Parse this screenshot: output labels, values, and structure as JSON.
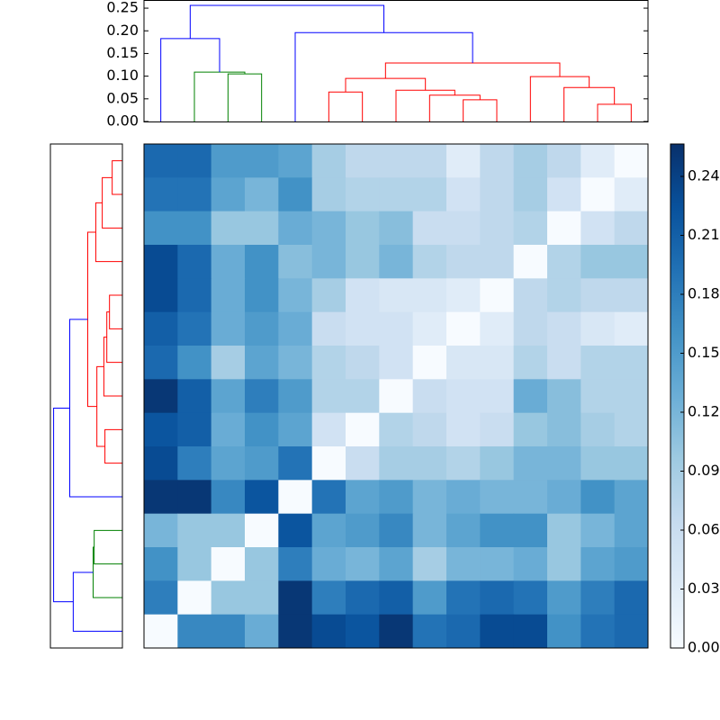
{
  "chart_data": {
    "type": "clustermap",
    "dendrogram": {
      "ylim": [
        0,
        0.268
      ],
      "yticks": [
        {
          "value": 0,
          "label": "0.00"
        },
        {
          "value": 0.05,
          "label": "0.05"
        },
        {
          "value": 0.1,
          "label": "0.10"
        },
        {
          "value": 0.15,
          "label": "0.15"
        },
        {
          "value": 0.2,
          "label": "0.20"
        },
        {
          "value": 0.25,
          "label": "0.25"
        }
      ],
      "links": [
        {
          "x": [
            2,
            3
          ],
          "h": [
            0,
            0,
            0.105
          ],
          "color": "#008000"
        },
        {
          "x": [
            1,
            2.5
          ],
          "h": [
            0,
            0.105,
            0.109
          ],
          "color": "#008000"
        },
        {
          "x": [
            0,
            1.75
          ],
          "h": [
            0,
            0.109,
            0.183
          ],
          "color": "#0000ff"
        },
        {
          "x": [
            5,
            6
          ],
          "h": [
            0,
            0,
            0.065
          ],
          "color": "#ff0000"
        },
        {
          "x": [
            9,
            10
          ],
          "h": [
            0,
            0,
            0.048
          ],
          "color": "#ff0000"
        },
        {
          "x": [
            8,
            9.5
          ],
          "h": [
            0,
            0.048,
            0.058
          ],
          "color": "#ff0000"
        },
        {
          "x": [
            7,
            8.75
          ],
          "h": [
            0,
            0.058,
            0.069
          ],
          "color": "#ff0000"
        },
        {
          "x": [
            5.5,
            7.875
          ],
          "h": [
            0.065,
            0.069,
            0.095
          ],
          "color": "#ff0000"
        },
        {
          "x": [
            13,
            14
          ],
          "h": [
            0,
            0,
            0.038
          ],
          "color": "#ff0000"
        },
        {
          "x": [
            12,
            13.5
          ],
          "h": [
            0,
            0.038,
            0.075
          ],
          "color": "#ff0000"
        },
        {
          "x": [
            11,
            12.75
          ],
          "h": [
            0,
            0.075,
            0.099
          ],
          "color": "#ff0000"
        },
        {
          "x": [
            6.6875,
            11.875
          ],
          "h": [
            0.095,
            0.099,
            0.129
          ],
          "color": "#ff0000"
        },
        {
          "x": [
            4,
            9.28
          ],
          "h": [
            0,
            0.129,
            0.196
          ],
          "color": "#0000ff"
        },
        {
          "x": [
            0.875,
            6.64
          ],
          "h": [
            0.183,
            0.196,
            0.256
          ],
          "color": "#0000ff"
        }
      ]
    },
    "z": [
      [
        0.2,
        0.2,
        0.15,
        0.15,
        0.14,
        0.09,
        0.07,
        0.07,
        0.07,
        0.03,
        0.07,
        0.09,
        0.07,
        0.03,
        0.0
      ],
      [
        0.19,
        0.19,
        0.14,
        0.12,
        0.16,
        0.09,
        0.08,
        0.08,
        0.08,
        0.05,
        0.07,
        0.09,
        0.05,
        0.0,
        0.03
      ],
      [
        0.16,
        0.16,
        0.1,
        0.1,
        0.13,
        0.12,
        0.1,
        0.11,
        0.06,
        0.06,
        0.07,
        0.08,
        0.0,
        0.05,
        0.07
      ],
      [
        0.23,
        0.2,
        0.13,
        0.16,
        0.11,
        0.12,
        0.1,
        0.12,
        0.08,
        0.07,
        0.07,
        0.0,
        0.08,
        0.1,
        0.1
      ],
      [
        0.23,
        0.2,
        0.13,
        0.16,
        0.12,
        0.09,
        0.05,
        0.04,
        0.04,
        0.03,
        0.0,
        0.07,
        0.08,
        0.07,
        0.07
      ],
      [
        0.21,
        0.19,
        0.13,
        0.15,
        0.13,
        0.06,
        0.05,
        0.05,
        0.03,
        0.0,
        0.03,
        0.07,
        0.06,
        0.04,
        0.03
      ],
      [
        0.2,
        0.16,
        0.09,
        0.14,
        0.12,
        0.08,
        0.07,
        0.05,
        0.0,
        0.04,
        0.04,
        0.08,
        0.06,
        0.08,
        0.08
      ],
      [
        0.25,
        0.21,
        0.14,
        0.18,
        0.15,
        0.08,
        0.08,
        0.0,
        0.06,
        0.05,
        0.05,
        0.13,
        0.11,
        0.08,
        0.08
      ],
      [
        0.22,
        0.21,
        0.13,
        0.16,
        0.14,
        0.05,
        0.0,
        0.08,
        0.07,
        0.05,
        0.06,
        0.1,
        0.11,
        0.09,
        0.08
      ],
      [
        0.23,
        0.18,
        0.14,
        0.15,
        0.19,
        0.0,
        0.06,
        0.09,
        0.09,
        0.08,
        0.1,
        0.12,
        0.12,
        0.1,
        0.1
      ],
      [
        0.25,
        0.25,
        0.17,
        0.22,
        0.0,
        0.19,
        0.14,
        0.15,
        0.12,
        0.13,
        0.12,
        0.12,
        0.13,
        0.16,
        0.14
      ],
      [
        0.12,
        0.1,
        0.1,
        0.0,
        0.22,
        0.14,
        0.15,
        0.17,
        0.12,
        0.14,
        0.16,
        0.16,
        0.1,
        0.12,
        0.14
      ],
      [
        0.16,
        0.1,
        0.0,
        0.1,
        0.18,
        0.13,
        0.12,
        0.14,
        0.09,
        0.12,
        0.12,
        0.13,
        0.1,
        0.14,
        0.15
      ],
      [
        0.18,
        0.0,
        0.1,
        0.1,
        0.25,
        0.18,
        0.2,
        0.21,
        0.15,
        0.19,
        0.2,
        0.19,
        0.15,
        0.18,
        0.2
      ],
      [
        0.0,
        0.17,
        0.17,
        0.13,
        0.25,
        0.23,
        0.22,
        0.25,
        0.19,
        0.2,
        0.23,
        0.23,
        0.16,
        0.19,
        0.2
      ]
    ],
    "clim": [
      0,
      0.2565
    ],
    "cticks": [
      {
        "value": 0,
        "label": "0.00"
      },
      {
        "value": 0.03,
        "label": "0.03"
      },
      {
        "value": 0.06,
        "label": "0.06"
      },
      {
        "value": 0.09,
        "label": "0.09"
      },
      {
        "value": 0.12,
        "label": "0.12"
      },
      {
        "value": 0.15,
        "label": "0.15"
      },
      {
        "value": 0.18,
        "label": "0.18"
      },
      {
        "value": 0.21,
        "label": "0.21"
      },
      {
        "value": 0.24,
        "label": "0.24"
      }
    ],
    "cmap_colors": [
      "#f7fbff",
      "#deebf7",
      "#c6dbef",
      "#9ecae1",
      "#6baed6",
      "#4292c6",
      "#2171b5",
      "#08519c",
      "#08306b"
    ]
  }
}
